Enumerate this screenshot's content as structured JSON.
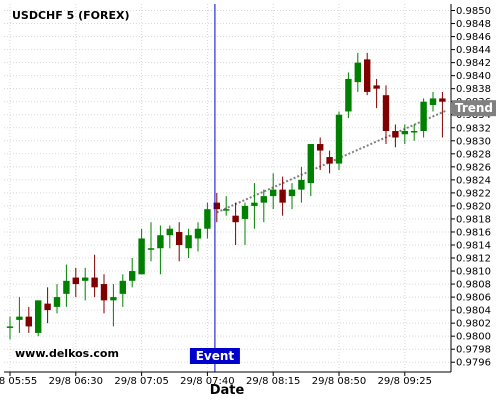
{
  "chart_data": {
    "type": "candlestick",
    "title": "USDCHF 5 (FOREX)",
    "watermark": "www.delkos.com",
    "xlabel": "Date",
    "ylim": [
      0.97945,
      0.9851
    ],
    "y_ticks": [
      "0.9796",
      "0.9798",
      "0.9800",
      "0.9802",
      "0.9804",
      "0.9806",
      "0.9808",
      "0.9810",
      "0.9812",
      "0.9814",
      "0.9816",
      "0.9818",
      "0.9820",
      "0.9822",
      "0.9824",
      "0.9826",
      "0.9828",
      "0.9830",
      "0.9832",
      "0.9834",
      "0.9836",
      "0.9838",
      "0.9840",
      "0.9842",
      "0.9844",
      "0.9846",
      "0.9848",
      "0.9850"
    ],
    "x_ticks": [
      {
        "label": "29/8 05:55",
        "index": 0
      },
      {
        "label": "29/8 06:30",
        "index": 7
      },
      {
        "label": "29/8 07:05",
        "index": 14
      },
      {
        "label": "29/8 07:40",
        "index": 21
      },
      {
        "label": "29/8 08:15",
        "index": 28
      },
      {
        "label": "29/8 08:50",
        "index": 35
      },
      {
        "label": "29/8 09:25",
        "index": 42
      }
    ],
    "colors": {
      "up": "#008000",
      "down": "#800000",
      "grid": "#d8d8d8",
      "event": "#0000cc",
      "trend": "#808080",
      "trend_box": "#808080"
    },
    "candles": [
      {
        "o": 0.98015,
        "h": 0.9803,
        "l": 0.97995,
        "c": 0.98015
      },
      {
        "o": 0.98025,
        "h": 0.9806,
        "l": 0.98005,
        "c": 0.9803
      },
      {
        "o": 0.9803,
        "h": 0.98045,
        "l": 0.98005,
        "c": 0.98015
      },
      {
        "o": 0.98005,
        "h": 0.98055,
        "l": 0.98,
        "c": 0.98055
      },
      {
        "o": 0.9805,
        "h": 0.98075,
        "l": 0.9802,
        "c": 0.9804
      },
      {
        "o": 0.98045,
        "h": 0.9808,
        "l": 0.98035,
        "c": 0.9806
      },
      {
        "o": 0.98065,
        "h": 0.9811,
        "l": 0.98045,
        "c": 0.98085
      },
      {
        "o": 0.9809,
        "h": 0.98105,
        "l": 0.9806,
        "c": 0.9808
      },
      {
        "o": 0.98085,
        "h": 0.98105,
        "l": 0.98055,
        "c": 0.9809
      },
      {
        "o": 0.9809,
        "h": 0.98125,
        "l": 0.9806,
        "c": 0.98075
      },
      {
        "o": 0.9808,
        "h": 0.98095,
        "l": 0.98035,
        "c": 0.98055
      },
      {
        "o": 0.98055,
        "h": 0.9808,
        "l": 0.98015,
        "c": 0.9806
      },
      {
        "o": 0.98065,
        "h": 0.98095,
        "l": 0.98045,
        "c": 0.98085
      },
      {
        "o": 0.98085,
        "h": 0.9812,
        "l": 0.98075,
        "c": 0.981
      },
      {
        "o": 0.98095,
        "h": 0.98165,
        "l": 0.98095,
        "c": 0.9815
      },
      {
        "o": 0.98135,
        "h": 0.98175,
        "l": 0.98115,
        "c": 0.98135
      },
      {
        "o": 0.98135,
        "h": 0.9817,
        "l": 0.98095,
        "c": 0.98155
      },
      {
        "o": 0.98155,
        "h": 0.9817,
        "l": 0.98135,
        "c": 0.98165
      },
      {
        "o": 0.9816,
        "h": 0.98175,
        "l": 0.98115,
        "c": 0.9814
      },
      {
        "o": 0.98135,
        "h": 0.98165,
        "l": 0.9812,
        "c": 0.98155
      },
      {
        "o": 0.9815,
        "h": 0.98175,
        "l": 0.9813,
        "c": 0.98165
      },
      {
        "o": 0.98165,
        "h": 0.98205,
        "l": 0.9815,
        "c": 0.98195
      },
      {
        "o": 0.98205,
        "h": 0.9822,
        "l": 0.98175,
        "c": 0.98195
      },
      {
        "o": 0.98195,
        "h": 0.98215,
        "l": 0.98185,
        "c": 0.98195
      },
      {
        "o": 0.98185,
        "h": 0.98205,
        "l": 0.9814,
        "c": 0.98175
      },
      {
        "o": 0.9818,
        "h": 0.98205,
        "l": 0.9814,
        "c": 0.982
      },
      {
        "o": 0.982,
        "h": 0.98235,
        "l": 0.98165,
        "c": 0.98205
      },
      {
        "o": 0.98205,
        "h": 0.98225,
        "l": 0.98175,
        "c": 0.98215
      },
      {
        "o": 0.98215,
        "h": 0.9825,
        "l": 0.98195,
        "c": 0.98225
      },
      {
        "o": 0.98225,
        "h": 0.98245,
        "l": 0.98185,
        "c": 0.98205
      },
      {
        "o": 0.98215,
        "h": 0.98235,
        "l": 0.98195,
        "c": 0.98225
      },
      {
        "o": 0.98225,
        "h": 0.9826,
        "l": 0.98205,
        "c": 0.9824
      },
      {
        "o": 0.98235,
        "h": 0.98295,
        "l": 0.98215,
        "c": 0.98295
      },
      {
        "o": 0.98295,
        "h": 0.98305,
        "l": 0.98255,
        "c": 0.98285
      },
      {
        "o": 0.98275,
        "h": 0.98285,
        "l": 0.9825,
        "c": 0.98265
      },
      {
        "o": 0.98265,
        "h": 0.98345,
        "l": 0.98255,
        "c": 0.9834
      },
      {
        "o": 0.98345,
        "h": 0.98405,
        "l": 0.98335,
        "c": 0.98395
      },
      {
        "o": 0.9839,
        "h": 0.98435,
        "l": 0.98375,
        "c": 0.9842
      },
      {
        "o": 0.98425,
        "h": 0.98435,
        "l": 0.9837,
        "c": 0.98375
      },
      {
        "o": 0.98385,
        "h": 0.98395,
        "l": 0.9835,
        "c": 0.9838
      },
      {
        "o": 0.9837,
        "h": 0.98385,
        "l": 0.98295,
        "c": 0.98315
      },
      {
        "o": 0.98315,
        "h": 0.98325,
        "l": 0.9829,
        "c": 0.98305
      },
      {
        "o": 0.9831,
        "h": 0.98325,
        "l": 0.98295,
        "c": 0.98315
      },
      {
        "o": 0.98315,
        "h": 0.98325,
        "l": 0.983,
        "c": 0.98315
      },
      {
        "o": 0.98315,
        "h": 0.98365,
        "l": 0.98305,
        "c": 0.9836
      },
      {
        "o": 0.98355,
        "h": 0.98375,
        "l": 0.98345,
        "c": 0.98365
      },
      {
        "o": 0.98365,
        "h": 0.98375,
        "l": 0.98305,
        "c": 0.9836
      }
    ],
    "event": {
      "label": "Event",
      "index": 21.8
    },
    "trend": {
      "label": "Trend",
      "start_index": 22,
      "start_value": 0.9819,
      "end_index": 46.5,
      "end_value": 0.98347
    }
  }
}
